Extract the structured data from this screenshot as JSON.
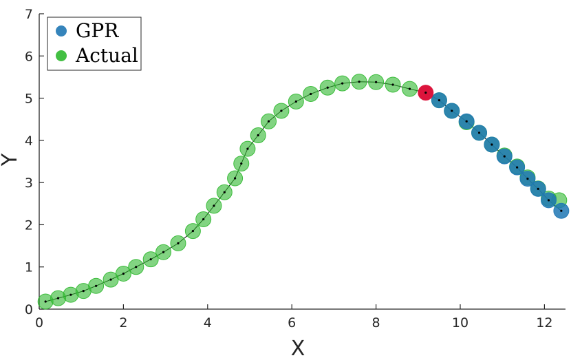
{
  "chart_data": {
    "type": "scatter",
    "xlabel": "X",
    "ylabel": "Y",
    "xlim": [
      0,
      12.5
    ],
    "ylim": [
      0,
      7
    ],
    "xticks": [
      "0",
      "2",
      "4",
      "6",
      "8",
      "10",
      "12"
    ],
    "yticks": [
      "0",
      "1",
      "2",
      "3",
      "4",
      "5",
      "6",
      "7"
    ],
    "legend_position": "top-left",
    "series": [
      {
        "name": "GPR",
        "color": "#1f77b4",
        "x": [
          9.5,
          9.8,
          10.15,
          10.45,
          10.75,
          11.05,
          11.35,
          11.6,
          11.85,
          12.1,
          12.4
        ],
        "y": [
          4.95,
          4.7,
          4.45,
          4.18,
          3.9,
          3.62,
          3.36,
          3.09,
          2.85,
          2.58,
          2.33
        ]
      },
      {
        "name": "Actual",
        "color": "#2fb82f",
        "x": [
          0.15,
          0.45,
          0.75,
          1.05,
          1.35,
          1.7,
          2.0,
          2.3,
          2.65,
          2.95,
          3.3,
          3.65,
          3.9,
          4.15,
          4.4,
          4.65,
          4.8,
          4.95,
          5.2,
          5.45,
          5.75,
          6.1,
          6.45,
          6.85,
          7.2,
          7.6,
          8.0,
          8.4,
          8.8,
          9.5,
          9.8,
          10.15,
          10.45,
          10.75,
          11.05,
          11.35,
          11.6,
          11.85,
          12.1,
          12.35
        ],
        "y": [
          0.18,
          0.26,
          0.34,
          0.43,
          0.55,
          0.7,
          0.84,
          1.0,
          1.18,
          1.35,
          1.56,
          1.85,
          2.13,
          2.45,
          2.77,
          3.1,
          3.45,
          3.8,
          4.12,
          4.45,
          4.7,
          4.92,
          5.1,
          5.25,
          5.35,
          5.39,
          5.38,
          5.32,
          5.22,
          4.95,
          4.7,
          4.43,
          4.18,
          3.9,
          3.64,
          3.38,
          3.12,
          2.86,
          2.62,
          2.58
        ]
      },
      {
        "name": "",
        "color": "#dc143c",
        "x": [
          9.18
        ],
        "y": [
          5.13
        ]
      }
    ],
    "line": {
      "color": "#000000",
      "x": [
        0.15,
        0.45,
        0.75,
        1.05,
        1.35,
        1.7,
        2.0,
        2.3,
        2.65,
        2.95,
        3.3,
        3.65,
        3.9,
        4.15,
        4.4,
        4.65,
        4.8,
        4.95,
        5.2,
        5.45,
        5.75,
        6.1,
        6.45,
        6.85,
        7.2,
        7.6,
        8.0,
        8.4,
        8.8,
        9.18,
        9.5,
        9.8,
        10.15,
        10.45,
        10.75,
        11.05,
        11.35,
        11.6,
        11.85,
        12.1,
        12.4
      ],
      "y": [
        0.18,
        0.26,
        0.34,
        0.43,
        0.55,
        0.7,
        0.84,
        1.0,
        1.18,
        1.35,
        1.56,
        1.85,
        2.13,
        2.45,
        2.77,
        3.1,
        3.45,
        3.8,
        4.12,
        4.45,
        4.7,
        4.92,
        5.1,
        5.25,
        5.35,
        5.39,
        5.38,
        5.32,
        5.22,
        5.13,
        4.95,
        4.7,
        4.45,
        4.18,
        3.9,
        3.62,
        3.36,
        3.09,
        2.85,
        2.58,
        2.33
      ]
    }
  }
}
